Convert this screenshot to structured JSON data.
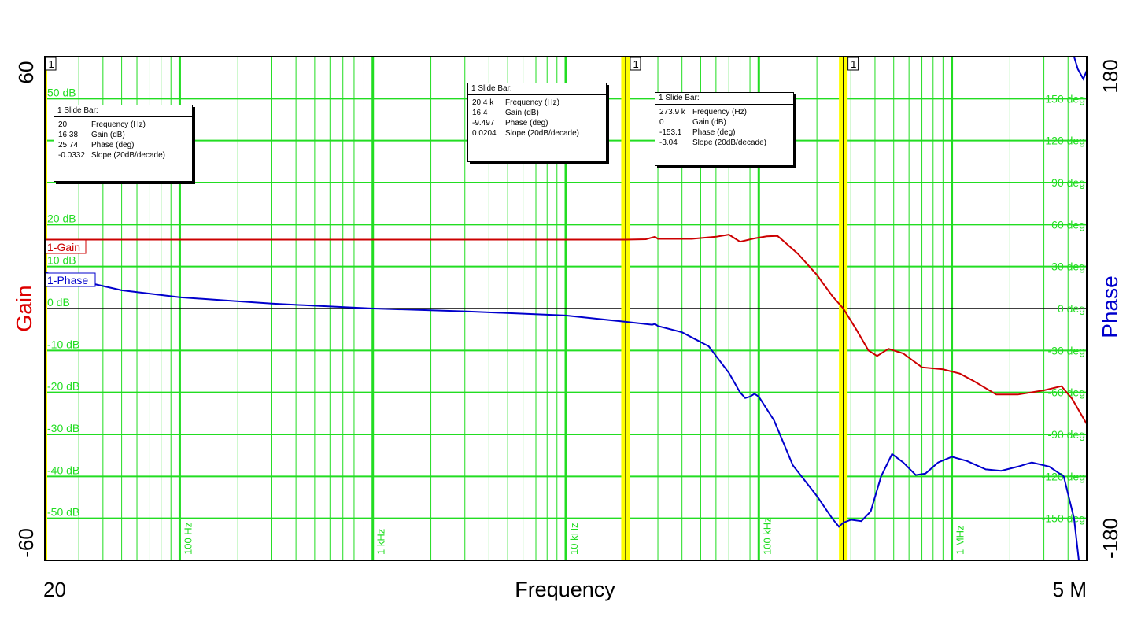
{
  "chart_data": {
    "type": "line",
    "xlabel": "Frequency",
    "x_scale": "log",
    "x_range": [
      20,
      5000000
    ],
    "x_range_labels": [
      "20",
      "5 M"
    ],
    "x_tick_labels": [
      "100 Hz",
      "1 kHz",
      "10 kHz",
      "100 kHz",
      "1 MHz"
    ],
    "x_tick_values": [
      100,
      1000,
      10000,
      100000,
      1000000
    ],
    "y_left": {
      "label": "Gain",
      "range": [
        -60,
        60
      ],
      "range_labels": [
        "60",
        "-60"
      ],
      "tick_values": [
        50,
        20,
        10,
        0,
        -10,
        -20,
        -30,
        -40,
        -50
      ],
      "tick_labels": [
        "50 dB",
        "20 dB",
        "10 dB",
        "0 dB",
        "-10 dB",
        "-20 dB",
        "-30 dB",
        "-40 dB",
        "-50 dB"
      ],
      "color": "#dd0000"
    },
    "y_right": {
      "label": "Phase",
      "range": [
        -180,
        180
      ],
      "range_labels": [
        "180",
        "-180"
      ],
      "tick_values": [
        150,
        120,
        90,
        60,
        30,
        0,
        -30,
        -60,
        -90,
        -120,
        -150
      ],
      "tick_labels": [
        "150 deg",
        "120 deg",
        "90 deg",
        "60 deg",
        "30 deg",
        "0 deg",
        "-30 deg",
        "-60 deg",
        "-90 deg",
        "-120 deg",
        "-150 deg"
      ],
      "color": "#0000cc"
    },
    "grid": true,
    "series": [
      {
        "name": "1-Gain",
        "axis": "left",
        "color": "#cc0000",
        "points": [
          [
            20,
            16.4
          ],
          [
            50,
            16.4
          ],
          [
            100,
            16.4
          ],
          [
            1000,
            16.4
          ],
          [
            10000,
            16.4
          ],
          [
            20400,
            16.4
          ],
          [
            26000,
            16.5
          ],
          [
            29000,
            17.1
          ],
          [
            30000,
            16.6
          ],
          [
            45000,
            16.6
          ],
          [
            60000,
            17.1
          ],
          [
            70000,
            17.6
          ],
          [
            80000,
            15.9
          ],
          [
            95000,
            16.7
          ],
          [
            110000,
            17.2
          ],
          [
            125000,
            17.3
          ],
          [
            135000,
            16
          ],
          [
            160000,
            13
          ],
          [
            200000,
            8
          ],
          [
            240000,
            3
          ],
          [
            273900,
            0
          ],
          [
            320000,
            -5
          ],
          [
            370000,
            -10
          ],
          [
            410000,
            -11.3
          ],
          [
            470000,
            -9.6
          ],
          [
            560000,
            -10.7
          ],
          [
            700000,
            -14
          ],
          [
            900000,
            -14.5
          ],
          [
            1100000,
            -15.5
          ],
          [
            1300000,
            -17.3
          ],
          [
            1700000,
            -20.5
          ],
          [
            2200000,
            -20.5
          ],
          [
            3000000,
            -19.5
          ],
          [
            3700000,
            -18.5
          ],
          [
            4200000,
            -21.5
          ],
          [
            5000000,
            -27.5
          ]
        ]
      },
      {
        "name": "1-Phase",
        "axis": "right",
        "color": "#0000cc",
        "points": [
          [
            20,
            25.7
          ],
          [
            30,
            20
          ],
          [
            50,
            13
          ],
          [
            100,
            8
          ],
          [
            300,
            3.5
          ],
          [
            1000,
            0
          ],
          [
            3000,
            -2
          ],
          [
            10000,
            -5
          ],
          [
            20400,
            -9.5
          ],
          [
            28000,
            -11.6
          ],
          [
            29000,
            -11
          ],
          [
            30000,
            -12.5
          ],
          [
            40000,
            -17
          ],
          [
            55000,
            -27
          ],
          [
            70000,
            -46
          ],
          [
            80000,
            -60
          ],
          [
            85000,
            -64
          ],
          [
            90000,
            -63
          ],
          [
            95000,
            -61
          ],
          [
            100000,
            -63
          ],
          [
            120000,
            -80
          ],
          [
            150000,
            -112
          ],
          [
            200000,
            -134
          ],
          [
            240000,
            -150
          ],
          [
            260000,
            -156
          ],
          [
            273900,
            -153.1
          ],
          [
            300000,
            -151
          ],
          [
            340000,
            -152
          ],
          [
            380000,
            -145
          ],
          [
            430000,
            -120
          ],
          [
            490000,
            -104
          ],
          [
            560000,
            -110
          ],
          [
            650000,
            -119
          ],
          [
            730000,
            -118
          ],
          [
            850000,
            -110
          ],
          [
            1000000,
            -106
          ],
          [
            1200000,
            -109
          ],
          [
            1500000,
            -115
          ],
          [
            1800000,
            -116
          ],
          [
            2200000,
            -113
          ],
          [
            2600000,
            -110
          ],
          [
            3200000,
            -113
          ],
          [
            3800000,
            -120
          ],
          [
            4300000,
            -150
          ],
          [
            4550000,
            -180
          ]
        ]
      },
      {
        "name": "",
        "axis": "right",
        "color": "#0000cc",
        "points": [
          [
            4300000,
            180
          ],
          [
            4500000,
            171
          ],
          [
            4800000,
            164
          ],
          [
            5000000,
            170
          ]
        ]
      }
    ],
    "legend": [
      {
        "label": "1-Gain",
        "color": "#cc0000",
        "position": "left"
      },
      {
        "label": "1-Phase",
        "color": "#0000cc",
        "position": "left"
      }
    ],
    "cursors": [
      {
        "id": "1",
        "frequency_hz": 20,
        "readout": {
          "title": "1  Slide Bar:",
          "rows": [
            {
              "value": "20",
              "label": "Frequency (Hz)"
            },
            {
              "value": "16.38",
              "label": "Gain (dB)"
            },
            {
              "value": "25.74",
              "label": "Phase (deg)"
            },
            {
              "value": "-0.0332",
              "label": "Slope (20dB/decade)"
            }
          ]
        }
      },
      {
        "id": "1",
        "frequency_hz": 20400,
        "readout": {
          "title": "1  Slide Bar:",
          "rows": [
            {
              "value": "20.4 k",
              "label": "Frequency (Hz)"
            },
            {
              "value": "16.4",
              "label": "Gain (dB)"
            },
            {
              "value": "-9.497",
              "label": "Phase (deg)"
            },
            {
              "value": "0.0204",
              "label": "Slope (20dB/decade)"
            }
          ]
        }
      },
      {
        "id": "1",
        "frequency_hz": 273900,
        "readout": {
          "title": "1  Slide Bar:",
          "rows": [
            {
              "value": "273.9 k",
              "label": "Frequency (Hz)"
            },
            {
              "value": "0",
              "label": "Gain (dB)"
            },
            {
              "value": "-153.1",
              "label": "Phase (deg)"
            },
            {
              "value": "-3.04",
              "label": "Slope (20dB/decade)"
            }
          ]
        }
      }
    ]
  },
  "colors": {
    "grid": "#22dd22",
    "cursor": "#ffff00",
    "zero_line": "#000000"
  }
}
